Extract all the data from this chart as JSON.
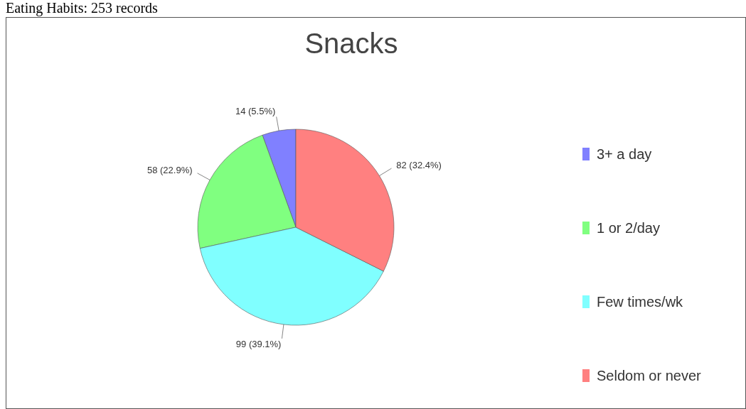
{
  "chart_data": {
    "type": "pie",
    "title": "Snacks",
    "subtitle": "Eating Habits: 253 records",
    "categories": [
      "3+ a day",
      "1 or 2/day",
      "Few times/wk",
      "Seldom or never"
    ],
    "values": [
      14,
      58,
      99,
      82
    ],
    "colors": [
      "#8080ff",
      "#80ff80",
      "#80ffff",
      "#ff8080"
    ],
    "value_labels": [
      "14 (5.5%)",
      "58 (22.9%)",
      "99 (39.1%)",
      "82 (32.4%)"
    ],
    "legend": "right"
  }
}
